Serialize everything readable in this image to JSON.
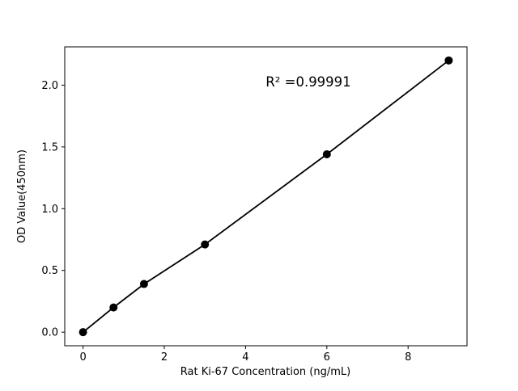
{
  "chart_data": {
    "type": "scatter",
    "title": "",
    "xlabel": "Rat Ki-67 Concentration (ng/mL)",
    "ylabel": "OD Value(450nm)",
    "x": [
      0,
      0.75,
      1.5,
      3,
      6,
      9
    ],
    "y": [
      0.0,
      0.2,
      0.39,
      0.71,
      1.44,
      2.2
    ],
    "annotation": "R² =0.99991",
    "xlim": [
      -0.45,
      9.45
    ],
    "ylim": [
      -0.11,
      2.31
    ],
    "xticks": [
      0,
      2,
      4,
      6,
      8
    ],
    "xtick_labels": [
      "0",
      "2",
      "4",
      "6",
      "8"
    ],
    "yticks": [
      0.0,
      0.5,
      1.0,
      1.5,
      2.0
    ],
    "ytick_labels": [
      "0.0",
      "0.5",
      "1.0",
      "1.5",
      "2.0"
    ],
    "grid": false,
    "legend": null,
    "line_color": "#000000",
    "marker_color": "#000000",
    "background_color": "#ffffff",
    "fit_line": true
  }
}
